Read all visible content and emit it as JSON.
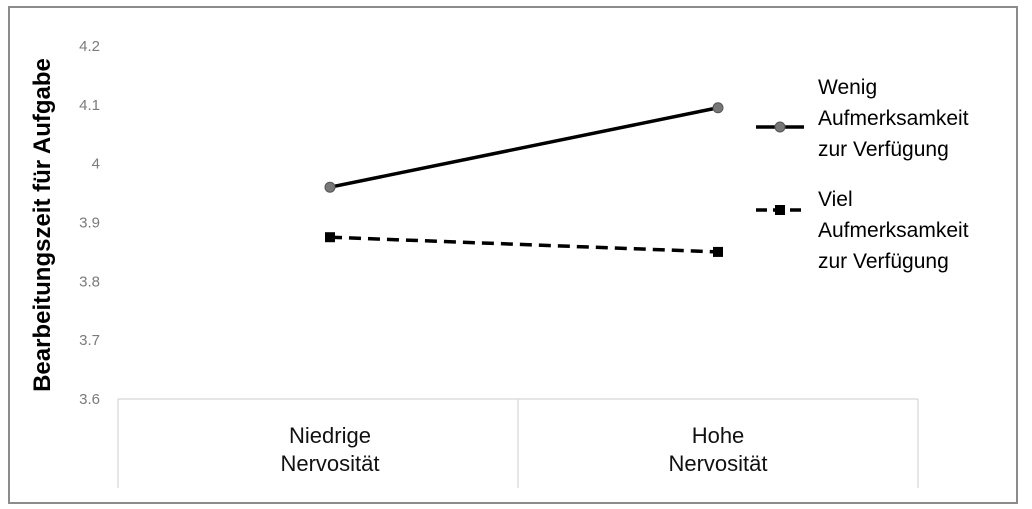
{
  "chart_data": {
    "type": "line",
    "title": "",
    "xlabel": "",
    "ylabel": "Bearbeitungszeit für Aufgabe",
    "categories": [
      [
        "Niedrige",
        "Nervosität"
      ],
      [
        "Hohe",
        "Nervosität"
      ]
    ],
    "yticks": [
      "4.2",
      "4.1",
      "4",
      "3.9",
      "3.8",
      "3.7",
      "3.6"
    ],
    "ylim": [
      3.6,
      4.2
    ],
    "grid": false,
    "legend_position": "right",
    "series": [
      {
        "name": [
          "Wenig",
          "Aufmerksamkeit",
          "zur Verfügung"
        ],
        "values": [
          3.96,
          4.095
        ],
        "line": "solid",
        "marker": "circle",
        "color": "#000000",
        "marker_color": "#777777"
      },
      {
        "name": [
          "Viel",
          "Aufmerksamkeit",
          "zur Verfügung"
        ],
        "values": [
          3.875,
          3.85
        ],
        "line": "dashed",
        "marker": "square",
        "color": "#000000",
        "marker_color": "#000000"
      }
    ]
  }
}
